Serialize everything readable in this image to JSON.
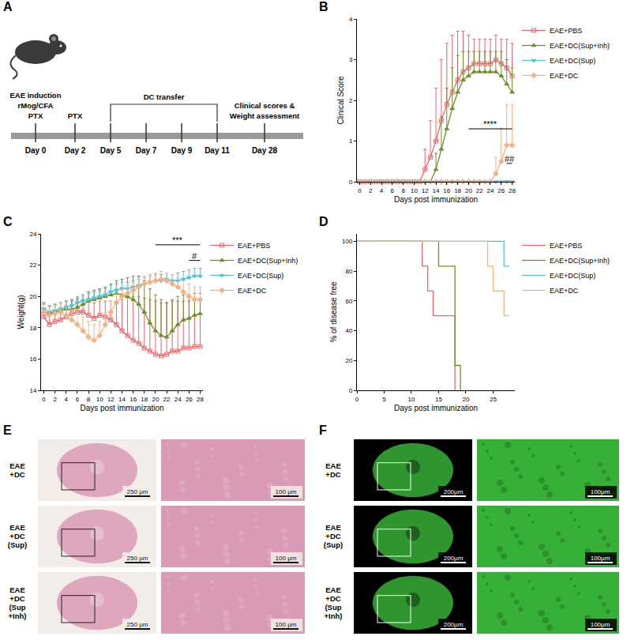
{
  "diagram": {
    "panel": "A",
    "timeline": [
      {
        "label": "Day 0",
        "notes": [
          "EAE induction",
          "rMog/CFA",
          "PTX"
        ]
      },
      {
        "label": "Day 2",
        "notes": [
          "PTX"
        ]
      },
      {
        "label": "Day 5"
      },
      {
        "label": "Day 7"
      },
      {
        "label": "Day 9"
      },
      {
        "label": "Day 11"
      },
      {
        "label": "Day 28",
        "notes": [
          "Clinical scores &",
          "Weight assessment"
        ]
      }
    ],
    "bracket": {
      "text": "DC transfer",
      "from": "Day 5",
      "to": "Day 11"
    }
  },
  "chart_data": [
    {
      "panel": "B",
      "type": "line",
      "x_label": "Days post immunization",
      "y_label": "Clinical Score",
      "x": [
        0,
        1,
        2,
        3,
        4,
        5,
        6,
        7,
        8,
        9,
        10,
        11,
        12,
        13,
        14,
        15,
        16,
        17,
        18,
        19,
        20,
        21,
        22,
        23,
        24,
        25,
        26,
        27,
        28
      ],
      "xlim": [
        -0.5,
        28.5
      ],
      "xticks": [
        0,
        2,
        4,
        6,
        8,
        10,
        12,
        14,
        16,
        18,
        20,
        22,
        24,
        26,
        28
      ],
      "ylim": [
        0,
        4
      ],
      "yticks": [
        0,
        1,
        2,
        3,
        4
      ],
      "grid": false,
      "legend": "right",
      "line_style": "solid",
      "series": [
        {
          "name": "EAE+PBS",
          "color": "#e8676b",
          "marker": "square-open",
          "values": [
            0,
            0,
            0,
            0,
            0,
            0,
            0,
            0,
            0,
            0,
            0,
            0,
            0.3,
            0.6,
            1.0,
            1.5,
            1.9,
            2.2,
            2.5,
            2.7,
            2.8,
            2.9,
            2.9,
            2.9,
            2.9,
            3.0,
            2.9,
            2.8,
            2.6
          ],
          "errors": [
            0,
            0,
            0,
            0,
            0,
            0,
            0,
            0,
            0,
            0,
            0,
            0,
            0.5,
            0.9,
            1.3,
            1.5,
            1.5,
            1.4,
            1.2,
            1.0,
            0.8,
            0.6,
            0.6,
            0.6,
            0.6,
            0.6,
            0.6,
            0.7,
            0.8
          ]
        },
        {
          "name": "EAE+DC(Sup+Inh)",
          "color": "#6f8f2a",
          "marker": "triangle-up",
          "values": [
            0,
            0,
            0,
            0,
            0,
            0,
            0,
            0,
            0,
            0,
            0,
            0,
            0,
            0,
            0.3,
            0.8,
            1.3,
            1.8,
            2.2,
            2.5,
            2.6,
            2.7,
            2.7,
            2.7,
            2.7,
            2.7,
            2.6,
            2.4,
            2.2
          ],
          "errors": [
            0,
            0,
            0,
            0,
            0,
            0,
            0,
            0,
            0,
            0,
            0,
            0,
            0,
            0,
            0.4,
            0.8,
            1.0,
            1.0,
            0.9,
            0.7,
            0.6,
            0.5,
            0.5,
            0.5,
            0.5,
            0.5,
            0.6,
            0.6,
            0.6
          ]
        },
        {
          "name": "EAE+DC(Sup)",
          "color": "#4fc3d9",
          "marker": "triangle-down",
          "values": [
            0,
            0,
            0,
            0,
            0,
            0,
            0,
            0,
            0,
            0,
            0,
            0,
            0,
            0,
            0,
            0,
            0,
            0,
            0,
            0,
            0,
            0,
            0,
            0,
            0,
            0,
            0,
            0,
            0
          ],
          "errors": [
            0,
            0,
            0,
            0,
            0,
            0,
            0,
            0,
            0,
            0,
            0,
            0,
            0,
            0,
            0,
            0,
            0,
            0,
            0,
            0,
            0,
            0,
            0,
            0,
            0,
            0,
            0,
            0,
            0
          ]
        },
        {
          "name": "EAE+DC",
          "color": "#f4b183",
          "marker": "diamond",
          "values": [
            0,
            0,
            0,
            0,
            0,
            0,
            0,
            0,
            0,
            0,
            0,
            0,
            0,
            0,
            0,
            0,
            0,
            0,
            0,
            0,
            0,
            0,
            0,
            0,
            0,
            0.2,
            0.5,
            0.9,
            0.9
          ],
          "errors": [
            0,
            0,
            0,
            0,
            0,
            0,
            0,
            0,
            0,
            0,
            0,
            0,
            0,
            0,
            0,
            0,
            0,
            0,
            0,
            0,
            0,
            0,
            0,
            0,
            0,
            0.4,
            0.8,
            1.0,
            1.0
          ]
        }
      ],
      "annotations": [
        {
          "text": "****",
          "x0": 20,
          "x1": 28,
          "y": 1.3
        },
        {
          "text": "##",
          "x0": 27,
          "x1": 28,
          "y": 0.45
        }
      ]
    },
    {
      "panel": "C",
      "type": "line",
      "x_label": "Days post immunization",
      "y_label": "Weight(g)",
      "x": [
        0,
        1,
        2,
        3,
        4,
        5,
        6,
        7,
        8,
        9,
        10,
        11,
        12,
        13,
        14,
        15,
        16,
        17,
        18,
        19,
        20,
        21,
        22,
        23,
        24,
        25,
        26,
        27,
        28
      ],
      "xlim": [
        -0.5,
        28.5
      ],
      "xticks": [
        0,
        2,
        4,
        6,
        8,
        10,
        12,
        14,
        16,
        18,
        20,
        22,
        24,
        26,
        28
      ],
      "ylim": [
        14,
        24
      ],
      "yticks": [
        14,
        16,
        18,
        20,
        22,
        24
      ],
      "grid": false,
      "legend": "right",
      "line_style": "solid",
      "series": [
        {
          "name": "EAE+PBS",
          "color": "#e8676b",
          "marker": "square-open",
          "values": [
            18.7,
            18.2,
            18.4,
            18.5,
            18.7,
            18.9,
            19.0,
            19.0,
            18.8,
            18.6,
            18.8,
            18.7,
            18.5,
            18.2,
            17.8,
            17.5,
            17.2,
            17.0,
            16.7,
            16.5,
            16.3,
            16.2,
            16.3,
            16.5,
            16.5,
            16.7,
            16.7,
            16.8,
            16.8
          ],
          "errors": [
            0.8,
            0.6,
            0.6,
            0.7,
            0.7,
            0.8,
            0.8,
            0.8,
            0.9,
            1.0,
            0.9,
            1.0,
            1.2,
            1.5,
            2.0,
            2.4,
            2.8,
            3.0,
            3.2,
            3.3,
            3.4,
            3.4,
            3.3,
            3.2,
            3.2,
            3.0,
            3.0,
            3.0,
            3.0
          ]
        },
        {
          "name": "EAE+DC(Sup+Inh)",
          "color": "#6f8f2a",
          "marker": "triangle-up",
          "values": [
            19.0,
            18.9,
            19.0,
            19.1,
            19.2,
            19.2,
            19.3,
            19.5,
            19.7,
            19.8,
            19.9,
            20.0,
            20.1,
            20.2,
            20.1,
            20.0,
            19.8,
            19.5,
            19.0,
            18.3,
            17.8,
            17.5,
            17.4,
            17.8,
            18.2,
            18.5,
            18.6,
            18.8,
            18.9
          ],
          "errors": [
            0.6,
            0.5,
            0.5,
            0.5,
            0.5,
            0.6,
            0.6,
            0.6,
            0.6,
            0.6,
            0.6,
            0.6,
            0.7,
            0.8,
            1.0,
            1.2,
            1.5,
            1.8,
            2.0,
            2.2,
            2.3,
            2.3,
            2.2,
            2.0,
            1.8,
            1.6,
            1.5,
            1.4,
            1.3
          ]
        },
        {
          "name": "EAE+DC(Sup)",
          "color": "#4fc3d9",
          "marker": "triangle-down",
          "values": [
            19.2,
            19.0,
            19.1,
            19.2,
            19.3,
            19.4,
            19.6,
            19.7,
            19.8,
            19.9,
            20.0,
            20.1,
            20.3,
            20.4,
            20.5,
            20.5,
            20.6,
            20.7,
            20.8,
            20.9,
            21.0,
            21.0,
            21.1,
            21.0,
            21.0,
            21.1,
            21.2,
            21.3,
            21.3
          ],
          "errors": [
            0.4,
            0.4,
            0.4,
            0.4,
            0.4,
            0.4,
            0.4,
            0.4,
            0.4,
            0.4,
            0.4,
            0.4,
            0.4,
            0.4,
            0.4,
            0.4,
            0.4,
            0.4,
            0.4,
            0.4,
            0.4,
            0.4,
            0.4,
            0.4,
            0.5,
            0.5,
            0.5,
            0.5,
            0.5
          ]
        },
        {
          "name": "EAE+DC",
          "color": "#f4b183",
          "marker": "diamond",
          "values": [
            19.0,
            18.8,
            18.9,
            19.0,
            18.8,
            18.5,
            18.2,
            17.8,
            17.4,
            17.2,
            17.5,
            18.2,
            19.0,
            19.6,
            20.0,
            20.2,
            20.4,
            20.6,
            20.8,
            20.9,
            21.0,
            21.1,
            21.0,
            20.8,
            20.6,
            20.3,
            20.0,
            19.8,
            19.8
          ],
          "errors": [
            0.5,
            0.5,
            0.5,
            0.6,
            0.6,
            0.7,
            0.8,
            0.9,
            1.0,
            1.0,
            0.9,
            0.8,
            0.7,
            0.6,
            0.6,
            0.5,
            0.5,
            0.5,
            0.5,
            0.5,
            0.5,
            0.5,
            0.5,
            0.6,
            0.6,
            0.7,
            0.8,
            0.8,
            0.8
          ]
        }
      ],
      "annotations": [
        {
          "text": "***",
          "x0": 20,
          "x1": 28,
          "y": 23.3
        },
        {
          "text": "#",
          "x0": 26,
          "x1": 28,
          "y": 22.3
        }
      ]
    },
    {
      "panel": "D",
      "type": "line",
      "x_label": "Days post immunization",
      "y_label": "% of disease free",
      "xlim": [
        0,
        29
      ],
      "xticks": [
        0,
        5,
        10,
        15,
        20,
        25
      ],
      "ylim": [
        0,
        105
      ],
      "yticks": [
        0,
        20,
        40,
        60,
        80,
        100
      ],
      "grid": false,
      "legend": "right",
      "line_style": "step",
      "series": [
        {
          "name": "EAE+PBS",
          "color": "#e8676b",
          "x": [
            0,
            12,
            13,
            14,
            18
          ],
          "values": [
            100,
            83.3,
            66.7,
            50,
            0
          ]
        },
        {
          "name": "EAE+DC(Sup+Inh)",
          "color": "#6f8f2a",
          "x": [
            0,
            15,
            18,
            19
          ],
          "values": [
            100,
            83.3,
            16.7,
            0
          ]
        },
        {
          "name": "EAE+DC(Sup)",
          "color": "#4fc3d9",
          "x": [
            0,
            27,
            28
          ],
          "values": [
            100,
            83.3,
            83.3
          ]
        },
        {
          "name": "EAE+DC",
          "color": "#f4b183",
          "x": [
            0,
            24,
            25,
            27,
            28
          ],
          "values": [
            100,
            83.3,
            66.7,
            50,
            50
          ]
        }
      ]
    }
  ],
  "images": [
    {
      "panel": "E",
      "colors": [
        "#f3ede9",
        "#d99ab6"
      ],
      "rows": [
        {
          "label": [
            "EAE",
            "+DC"
          ]
        },
        {
          "label": [
            "EAE",
            "+DC",
            "(Sup)"
          ]
        },
        {
          "label": [
            "EAE",
            "+DC",
            "(Sup",
            "+Inh)"
          ]
        }
      ],
      "scale_bars": [
        "250 µm",
        "100 µm"
      ]
    },
    {
      "panel": "F",
      "colors": [
        "#000000",
        "#37b037"
      ],
      "rows": [
        {
          "label": [
            "EAE",
            "+DC"
          ]
        },
        {
          "label": [
            "EAE",
            "+DC",
            "(Sup)"
          ]
        },
        {
          "label": [
            "EAE",
            "+DC",
            "(Sup",
            "+Inh)"
          ]
        }
      ],
      "scale_bars": [
        "200µm",
        "100µm"
      ]
    }
  ]
}
